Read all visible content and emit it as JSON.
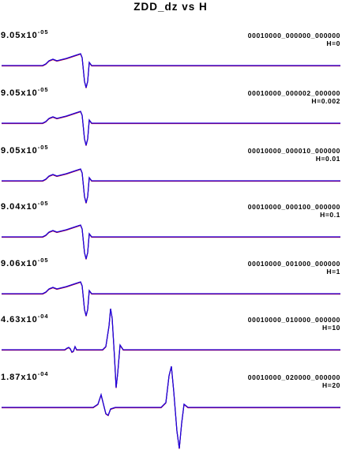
{
  "chart_data": {
    "type": "line",
    "title": "ZDD_dz vs H",
    "colors": {
      "trace_a": "#1a1a1a",
      "trace_b": "#2200dd",
      "trace_c": "#cc0022"
    },
    "panels": [
      {
        "amplitude": "9.05x10",
        "exponent": "-05",
        "code": "00010000_000000_000000",
        "h_label": "H=0"
      },
      {
        "amplitude": "9.05x10",
        "exponent": "-05",
        "code": "00010000_000002_000000",
        "h_label": "H=0.002"
      },
      {
        "amplitude": "9.05x10",
        "exponent": "-05",
        "code": "00010000_000010_000000",
        "h_label": "H=0.01"
      },
      {
        "amplitude": "9.04x10",
        "exponent": "-05",
        "code": "00010000_000100_000000",
        "h_label": "H=0.1"
      },
      {
        "amplitude": "9.06x10",
        "exponent": "-05",
        "code": "00010000_001000_000000",
        "h_label": "H=1"
      },
      {
        "amplitude": "4.63x10",
        "exponent": "-04",
        "code": "00010000_010000_000000",
        "h_label": "H=10"
      },
      {
        "amplitude": "1.87x10",
        "exponent": "-04",
        "code": "00010000_020000_000000",
        "h_label": "H=20"
      }
    ]
  }
}
